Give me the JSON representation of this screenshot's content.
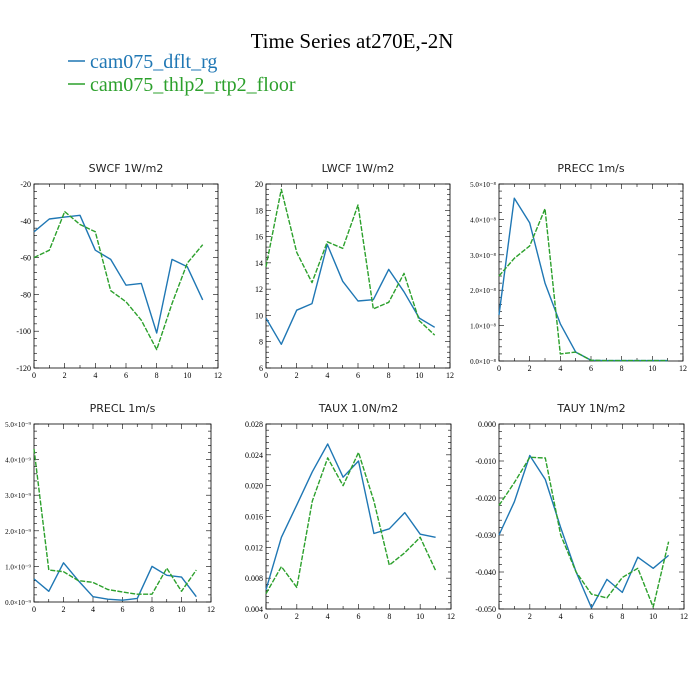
{
  "header": {
    "title": "Time Series at270E,-2N",
    "legend": [
      {
        "label": "cam075_dflt_rg",
        "color": "#1f77b4",
        "dash": "solid"
      },
      {
        "label": "cam075_thlp2_rtp2_floor",
        "color": "#2ca02c",
        "dash": "dashed"
      }
    ]
  },
  "chart_data": [
    {
      "type": "line",
      "title": "SWCF   1W/m2",
      "x": [
        0,
        1,
        2,
        3,
        4,
        5,
        6,
        7,
        8,
        9,
        10,
        11
      ],
      "xlim": [
        0,
        12
      ],
      "xticks": [
        "0",
        "2",
        "4",
        "6",
        "8",
        "10",
        "12"
      ],
      "ylim": [
        -120,
        -20
      ],
      "yticks": [
        "-120",
        "-100",
        "-80",
        "-60",
        "-40",
        "-20"
      ],
      "series": [
        {
          "name": "cam075_dflt_rg",
          "values": [
            -46,
            -39,
            -38,
            -37,
            -56,
            -61,
            -75,
            -74,
            -101,
            -61,
            -65,
            -83
          ]
        },
        {
          "name": "cam075_thlp2_rtp2_floor",
          "values": [
            -60,
            -56,
            -35,
            -42,
            -46,
            -78,
            -84,
            -94,
            -110,
            -85,
            -63,
            -53
          ]
        }
      ]
    },
    {
      "type": "line",
      "title": "LWCF   1W/m2",
      "x": [
        0,
        1,
        2,
        3,
        4,
        5,
        6,
        7,
        8,
        9,
        10,
        11
      ],
      "xlim": [
        0,
        12
      ],
      "xticks": [
        "0",
        "2",
        "4",
        "6",
        "8",
        "10",
        "12"
      ],
      "ylim": [
        6,
        20
      ],
      "yticks": [
        "6",
        "8",
        "10",
        "12",
        "14",
        "16",
        "18",
        "20"
      ],
      "series": [
        {
          "name": "cam075_dflt_rg",
          "values": [
            9.8,
            7.8,
            10.4,
            10.9,
            15.4,
            12.6,
            11.1,
            11.2,
            13.5,
            11.8,
            9.8,
            9.1
          ]
        },
        {
          "name": "cam075_thlp2_rtp2_floor",
          "values": [
            13.7,
            19.6,
            14.8,
            12.5,
            15.6,
            15.1,
            18.4,
            10.5,
            11.0,
            13.2,
            9.6,
            8.5
          ]
        }
      ]
    },
    {
      "type": "line",
      "title": "PRECC   1m/s",
      "x": [
        0,
        1,
        2,
        3,
        4,
        5,
        6,
        7,
        8,
        9,
        10,
        11
      ],
      "xlim": [
        0,
        12
      ],
      "xticks": [
        "0",
        "2",
        "4",
        "6",
        "8",
        "10",
        "12"
      ],
      "ylim": [
        0,
        5
      ],
      "yticks": [
        "0.0×10⁻⁸",
        "1.0×10⁻⁸",
        "2.0×10⁻⁸",
        "3.0×10⁻⁸",
        "4.0×10⁻⁸",
        "5.0×10⁻⁸"
      ],
      "series": [
        {
          "name": "cam075_dflt_rg",
          "values": [
            1.3,
            4.6,
            3.9,
            2.2,
            1.05,
            0.25,
            0.02,
            0.01,
            0.01,
            0.01,
            0.01,
            0.01
          ]
        },
        {
          "name": "cam075_thlp2_rtp2_floor",
          "values": [
            2.4,
            2.9,
            3.25,
            4.3,
            0.2,
            0.25,
            0.02,
            0.01,
            0.01,
            0.01,
            0.01,
            0.01
          ]
        }
      ]
    },
    {
      "type": "line",
      "title": "PRECL   1m/s",
      "x": [
        0,
        1,
        2,
        3,
        4,
        5,
        6,
        7,
        8,
        9,
        10,
        11
      ],
      "xlim": [
        0,
        12
      ],
      "xticks": [
        "0",
        "2",
        "4",
        "6",
        "8",
        "10",
        "12"
      ],
      "ylim": [
        0,
        5
      ],
      "yticks": [
        "0.0×10⁻⁹",
        "1.0×10⁻⁹",
        "2.0×10⁻⁹",
        "3.0×10⁻⁹",
        "4.0×10⁻⁹",
        "5.0×10⁻⁹"
      ],
      "series": [
        {
          "name": "cam075_dflt_rg",
          "values": [
            0.65,
            0.3,
            1.1,
            0.6,
            0.15,
            0.08,
            0.05,
            0.1,
            1.0,
            0.75,
            0.7,
            0.15
          ]
        },
        {
          "name": "cam075_thlp2_rtp2_floor",
          "values": [
            4.3,
            0.9,
            0.85,
            0.6,
            0.55,
            0.35,
            0.28,
            0.22,
            0.22,
            0.95,
            0.3,
            0.9
          ]
        }
      ]
    },
    {
      "type": "line",
      "title": "TAUX   1.0N/m2",
      "x": [
        0,
        1,
        2,
        3,
        4,
        5,
        6,
        7,
        8,
        9,
        10,
        11
      ],
      "xlim": [
        0,
        12
      ],
      "xticks": [
        "0",
        "2",
        "4",
        "6",
        "8",
        "10",
        "12"
      ],
      "ylim": [
        0.004,
        0.028
      ],
      "yticks": [
        "0.004",
        "0.008",
        "0.012",
        "0.016",
        "0.020",
        "0.024",
        "0.028"
      ],
      "series": [
        {
          "name": "cam075_dflt_rg",
          "values": [
            0.0065,
            0.0133,
            0.0175,
            0.0218,
            0.0254,
            0.0211,
            0.0232,
            0.0138,
            0.0144,
            0.0165,
            0.0137,
            0.0133
          ]
        },
        {
          "name": "cam075_thlp2_rtp2_floor",
          "values": [
            0.006,
            0.0095,
            0.0068,
            0.018,
            0.0236,
            0.02,
            0.0243,
            0.018,
            0.0097,
            0.0113,
            0.0133,
            0.009
          ]
        }
      ]
    },
    {
      "type": "line",
      "title": "TAUY   1N/m2",
      "x": [
        0,
        1,
        2,
        3,
        4,
        5,
        6,
        7,
        8,
        9,
        10,
        11
      ],
      "xlim": [
        0,
        12
      ],
      "xticks": [
        "0",
        "2",
        "4",
        "6",
        "8",
        "10",
        "12"
      ],
      "ylim": [
        -0.05,
        0.0
      ],
      "yticks": [
        "-0.050",
        "-0.040",
        "-0.030",
        "-0.020",
        "-0.010",
        "0.000"
      ],
      "series": [
        {
          "name": "cam075_dflt_rg",
          "values": [
            -0.03,
            -0.021,
            -0.0085,
            -0.015,
            -0.028,
            -0.04,
            -0.0497,
            -0.042,
            -0.0455,
            -0.036,
            -0.039,
            -0.0355
          ]
        },
        {
          "name": "cam075_thlp2_rtp2_floor",
          "values": [
            -0.022,
            -0.0158,
            -0.009,
            -0.0092,
            -0.03,
            -0.04,
            -0.046,
            -0.047,
            -0.0415,
            -0.039,
            -0.0495,
            -0.0318
          ]
        }
      ]
    }
  ]
}
